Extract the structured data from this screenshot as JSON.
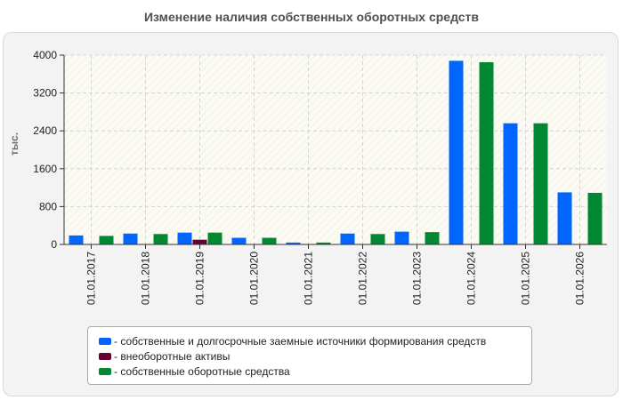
{
  "chart_data": {
    "type": "bar",
    "title": "Изменение наличия собственных оборотных средств",
    "xlabel": "",
    "ylabel": "тыс.",
    "ylim": [
      0,
      4000
    ],
    "yticks": [
      "0",
      "800",
      "1600",
      "2400",
      "3200",
      "4000"
    ],
    "grid": true,
    "legend_position": "bottom",
    "categories": [
      "01.01.2017",
      "01.01.2018",
      "01.01.2019",
      "01.01.2020",
      "01.01.2021",
      "01.01.2022",
      "01.01.2023",
      "01.01.2024",
      "01.01.2025",
      "01.01.2026"
    ],
    "series": [
      {
        "name": "- собственные и долгосрочные заемные источники формирования средств",
        "color": "#0066ff",
        "values": [
          190,
          230,
          250,
          140,
          40,
          230,
          270,
          3880,
          2560,
          1100
        ]
      },
      {
        "name": "- внеоборотные активы",
        "color": "#660033",
        "values": [
          10,
          10,
          100,
          10,
          10,
          10,
          10,
          10,
          10,
          10
        ]
      },
      {
        "name": "- собственные оборотные средства",
        "color": "#008833",
        "values": [
          180,
          220,
          250,
          140,
          40,
          220,
          260,
          3850,
          2560,
          1090
        ]
      }
    ]
  }
}
